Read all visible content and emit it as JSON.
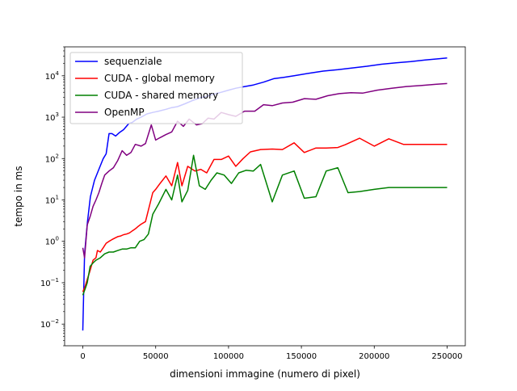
{
  "chart_data": {
    "type": "line",
    "title": "",
    "xlabel": "dimensioni immagine (numero di pixel)",
    "ylabel": "tempo in ms",
    "xlim": [
      -12500,
      262500
    ],
    "ylim": [
      0.003,
      50000
    ],
    "yscale": "log",
    "grid": false,
    "legend_position": "top-left",
    "x_ticks": [
      0,
      50000,
      100000,
      150000,
      200000,
      250000
    ],
    "x_tick_labels": [
      "0",
      "50000",
      "100000",
      "150000",
      "200000",
      "250000"
    ],
    "y_ticks": [
      0.01,
      0.1,
      1,
      10,
      100,
      1000,
      10000
    ],
    "y_tick_labels": [
      {
        "base": "10",
        "exp": "−2"
      },
      {
        "base": "10",
        "exp": "−1"
      },
      {
        "base": "10",
        "exp": "0"
      },
      {
        "base": "10",
        "exp": "1"
      },
      {
        "base": "10",
        "exp": "2"
      },
      {
        "base": "10",
        "exp": "3"
      },
      {
        "base": "10",
        "exp": "4"
      }
    ],
    "series": [
      {
        "name": "sequenziale",
        "color": "#0000ff",
        "x": [
          0,
          1200,
          3200,
          5200,
          8000,
          11000,
          14000,
          16000,
          18000,
          20000,
          22500,
          25000,
          28000,
          31500,
          34000,
          37000,
          40000,
          44000,
          48000,
          52000,
          57000,
          61000,
          65000,
          70000,
          75000,
          80000,
          85000,
          90000,
          95000,
          100000,
          105000,
          110000,
          117000,
          124000,
          131000,
          138000,
          145000,
          155000,
          165000,
          175000,
          185000,
          195000,
          205000,
          215000,
          225000,
          235000,
          245000,
          250000
        ],
        "y": [
          0.007,
          0.5,
          3,
          12,
          30,
          55,
          100,
          130,
          400,
          400,
          350,
          420,
          500,
          700,
          750,
          900,
          1000,
          1200,
          1300,
          1400,
          1550,
          1700,
          1800,
          2100,
          2500,
          2900,
          3200,
          3600,
          4000,
          4500,
          5000,
          5400,
          6000,
          7000,
          8500,
          9200,
          10000,
          11500,
          13000,
          14000,
          15500,
          17000,
          19000,
          20500,
          22000,
          24000,
          26000,
          27000
        ]
      },
      {
        "name": "CUDA - global memory",
        "color": "#ff0000",
        "x": [
          0,
          1500,
          3000,
          5000,
          7000,
          9000,
          10000,
          12000,
          14000,
          16000,
          18000,
          20000,
          22000,
          24000,
          26000,
          28000,
          30000,
          32000,
          34000,
          36000,
          38000,
          40000,
          43000,
          48000,
          50000,
          53000,
          57000,
          61000,
          65000,
          68000,
          72000,
          77000,
          81000,
          85000,
          90000,
          95000,
          100000,
          105000,
          110000,
          115000,
          122000,
          130000,
          137000,
          145000,
          152000,
          160000,
          167000,
          175000,
          180000,
          190000,
          200000,
          210000,
          220000,
          230000,
          240000,
          250000
        ],
        "y": [
          0.06,
          0.08,
          0.12,
          0.2,
          0.35,
          0.4,
          0.6,
          0.55,
          0.7,
          0.9,
          1.0,
          1.1,
          1.2,
          1.3,
          1.35,
          1.45,
          1.5,
          1.6,
          1.8,
          2.0,
          2.3,
          2.6,
          3.0,
          15,
          18,
          25,
          38,
          22,
          80,
          22,
          65,
          50,
          55,
          45,
          95,
          95,
          115,
          65,
          100,
          145,
          165,
          170,
          165,
          240,
          140,
          180,
          180,
          185,
          215,
          310,
          200,
          300,
          220,
          220,
          220,
          220
        ],
        "note_points": 0
      },
      {
        "name": "CUDA - shared memory",
        "color": "#008000",
        "x": [
          0,
          1500,
          3000,
          5000,
          7000,
          9000,
          12000,
          15000,
          18000,
          21000,
          24000,
          27000,
          30000,
          33000,
          36000,
          39000,
          42000,
          45000,
          48000,
          52000,
          57000,
          61000,
          65000,
          68000,
          72000,
          76000,
          80000,
          84000,
          88000,
          92000,
          97000,
          102000,
          107000,
          112000,
          117000,
          122000,
          130000,
          137000,
          145000,
          152000,
          160000,
          167000,
          175000,
          182000,
          190000,
          200000,
          210000,
          220000,
          230000,
          240000,
          250000
        ],
        "y": [
          0.05,
          0.07,
          0.1,
          0.25,
          0.3,
          0.35,
          0.4,
          0.5,
          0.55,
          0.55,
          0.6,
          0.65,
          0.65,
          0.7,
          0.7,
          1.0,
          1.1,
          1.5,
          4.5,
          8,
          18,
          10,
          40,
          9,
          17,
          120,
          22,
          18,
          30,
          45,
          40,
          25,
          45,
          52,
          50,
          72,
          9,
          40,
          50,
          11,
          12,
          50,
          60,
          15,
          16,
          18,
          20,
          20,
          20,
          20,
          20
        ],
        "note_points": 0
      },
      {
        "name": "OpenMP",
        "color": "#800080",
        "x": [
          0,
          1200,
          3000,
          5000,
          7000,
          9000,
          11000,
          13000,
          15000,
          18000,
          21000,
          24000,
          27000,
          30000,
          33000,
          36000,
          40000,
          43000,
          47000,
          50000,
          53000,
          57000,
          61000,
          65000,
          69000,
          73000,
          78000,
          82000,
          86000,
          90000,
          95000,
          100000,
          105000,
          111000,
          118000,
          124000,
          130000,
          137000,
          144000,
          152000,
          160000,
          168000,
          176000,
          184000,
          192000,
          202000,
          212000,
          222000,
          232000,
          242000,
          250000
        ],
        "y": [
          0.7,
          0.4,
          2.5,
          4,
          7,
          10,
          15,
          25,
          40,
          50,
          60,
          90,
          155,
          120,
          140,
          220,
          200,
          230,
          650,
          280,
          320,
          380,
          440,
          800,
          600,
          900,
          650,
          700,
          950,
          900,
          1300,
          1150,
          1050,
          1400,
          1400,
          2000,
          1900,
          2200,
          2300,
          2800,
          2700,
          3300,
          3700,
          3900,
          3800,
          4500,
          5000,
          5500,
          5800,
          6200,
          6500
        ]
      }
    ]
  }
}
